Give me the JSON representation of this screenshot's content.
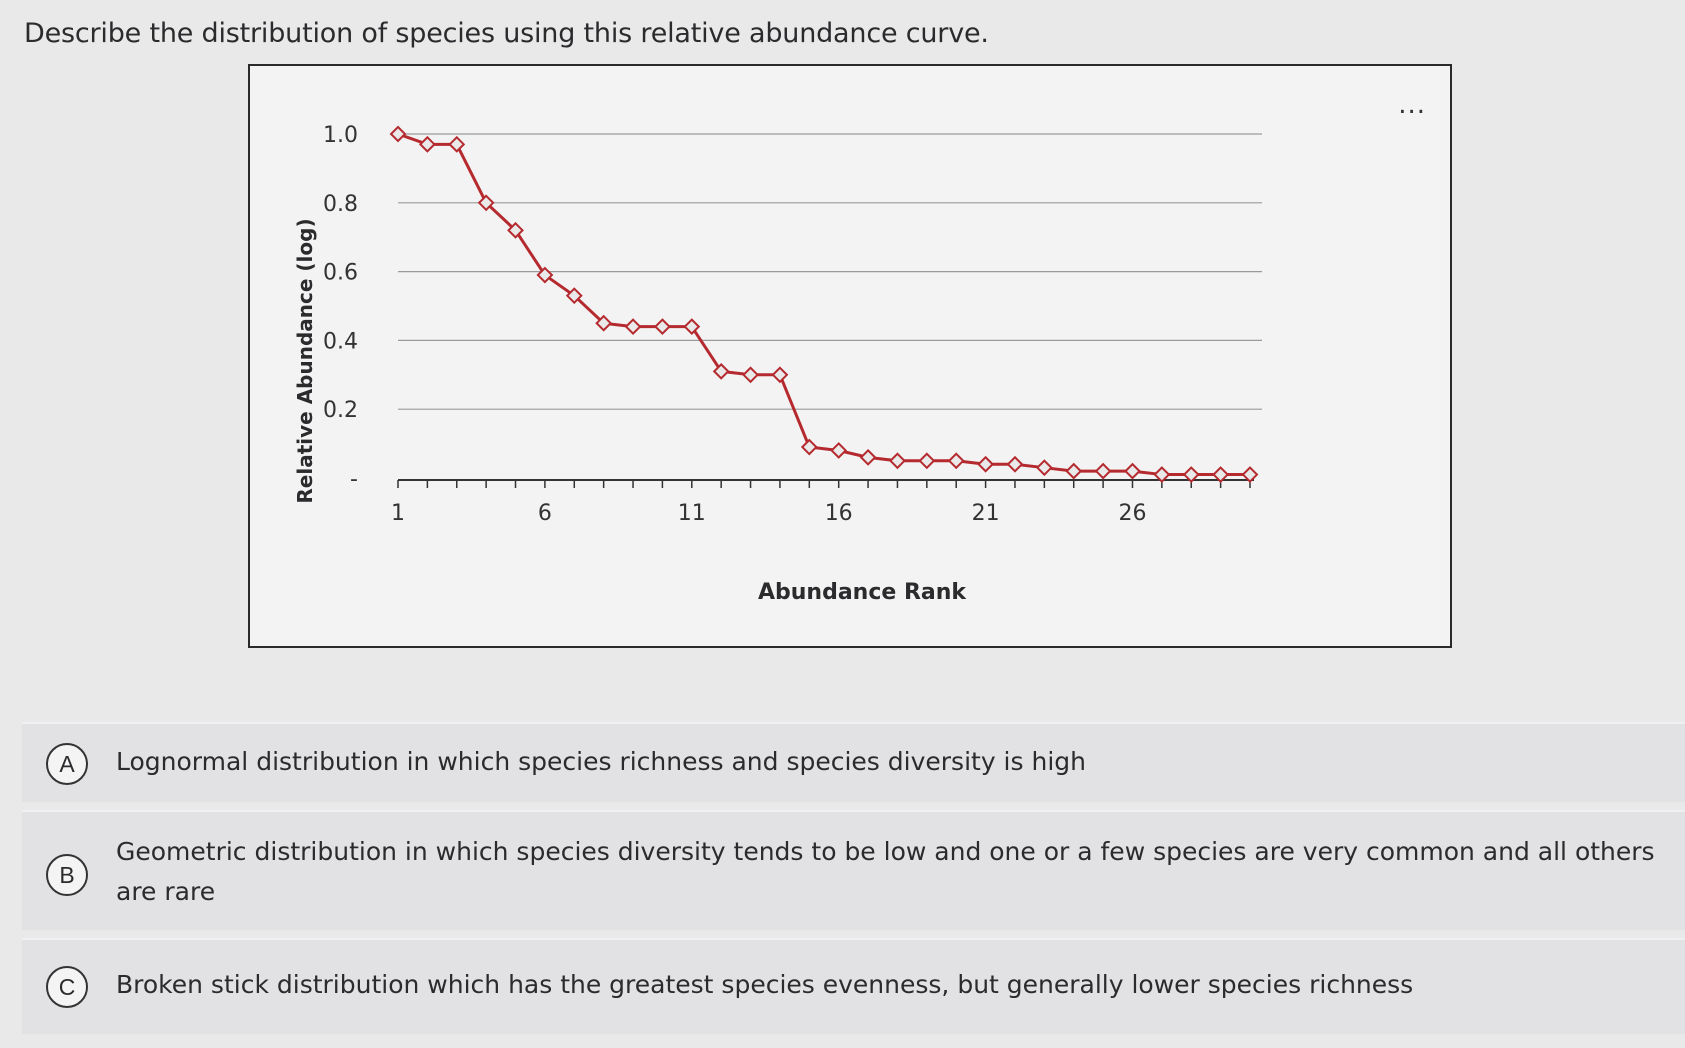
{
  "question": "Describe the distribution of species using this relative abundance curve.",
  "menu": {
    "more_label": "..."
  },
  "choices": [
    {
      "letter": "A",
      "text": "Lognormal distribution in which species richness and species diversity is high"
    },
    {
      "letter": "B",
      "text": "Geometric distribution in which species diversity tends to be low and one or a few species are very common and all others are rare"
    },
    {
      "letter": "C",
      "text": "Broken stick distribution which has the greatest species evenness, but generally lower species richness"
    }
  ],
  "chart_data": {
    "type": "line",
    "title": "",
    "xlabel": "Abundance Rank",
    "ylabel": "Relative Abundance (log)",
    "xlim": [
      1,
      30
    ],
    "ylim": [
      0,
      1.0
    ],
    "x_ticks": [
      1,
      6,
      11,
      16,
      21,
      26
    ],
    "y_ticks": [
      {
        "value": 1.0,
        "label": "1.0"
      },
      {
        "value": 0.8,
        "label": "0.8"
      },
      {
        "value": 0.6,
        "label": "0.6"
      },
      {
        "value": 0.4,
        "label": "0.4"
      },
      {
        "value": 0.2,
        "label": "0.2"
      },
      {
        "value": 0.0,
        "label": "-"
      }
    ],
    "grid": true,
    "legend": "none",
    "colors": {
      "line": "#b52a2f",
      "marker_fill": "#e9e9e9",
      "grid": "#9a9a9a"
    },
    "x": [
      1,
      2,
      3,
      4,
      5,
      6,
      7,
      8,
      9,
      10,
      11,
      12,
      13,
      14,
      15,
      16,
      17,
      18,
      19,
      20,
      21,
      22,
      23,
      24,
      25,
      26,
      27,
      28,
      29,
      30
    ],
    "values": [
      1.0,
      0.97,
      0.97,
      0.8,
      0.72,
      0.59,
      0.53,
      0.45,
      0.44,
      0.44,
      0.44,
      0.31,
      0.3,
      0.3,
      0.09,
      0.08,
      0.06,
      0.05,
      0.05,
      0.05,
      0.04,
      0.04,
      0.03,
      0.02,
      0.02,
      0.02,
      0.01,
      0.01,
      0.01,
      0.01
    ]
  }
}
